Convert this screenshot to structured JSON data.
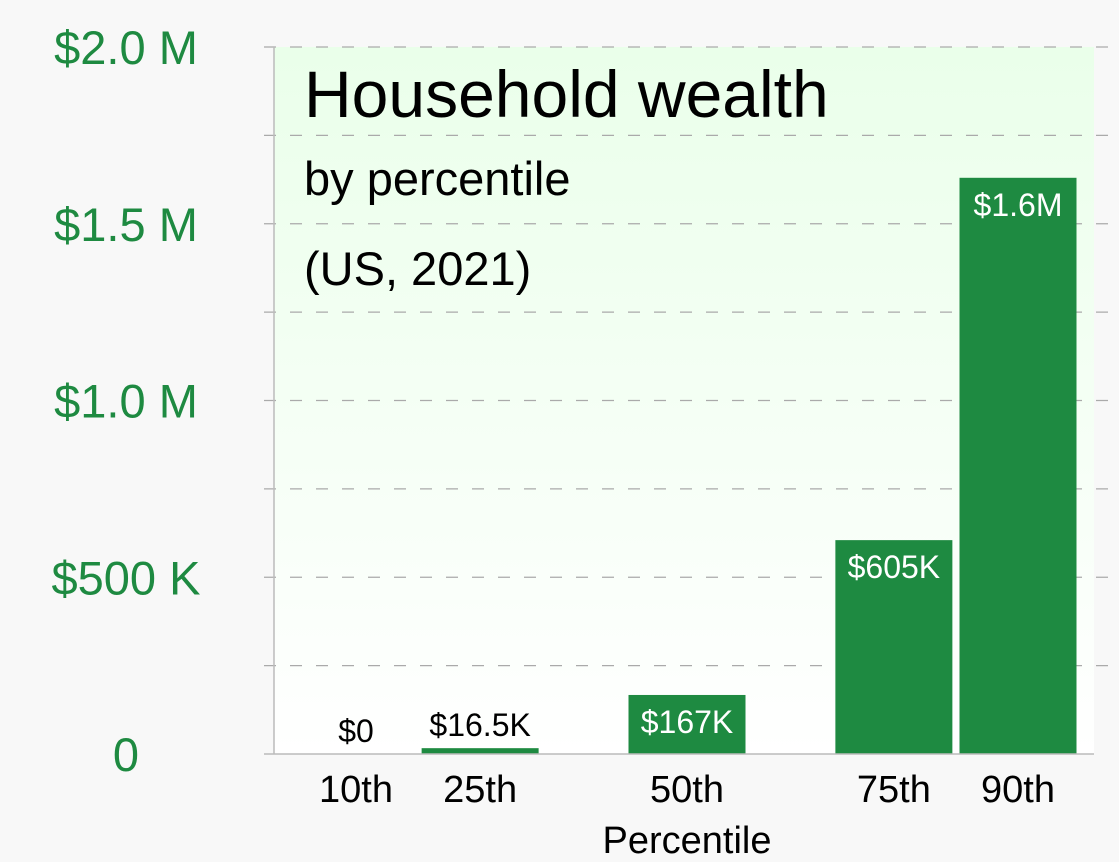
{
  "chart_data": {
    "type": "bar",
    "title": "Household wealth",
    "subtitle_lines": [
      "by percentile",
      "(US, 2021)"
    ],
    "xlabel": "Percentile",
    "ylabel": "",
    "x": [
      10,
      25,
      50,
      75,
      90
    ],
    "categories": [
      "10th",
      "25th",
      "50th",
      "75th",
      "90th"
    ],
    "values": [
      0,
      16500,
      167000,
      605000,
      1630000
    ],
    "data_labels": [
      "$0",
      "$16.5K",
      "$167K",
      "$605K",
      "$1.6M"
    ],
    "ylim": [
      0,
      2000000
    ],
    "yticks": [
      {
        "value": 0,
        "label": "0"
      },
      {
        "value": 500000,
        "label": "$500 K"
      },
      {
        "value": 1000000,
        "label": "$1.0 M"
      },
      {
        "value": 1500000,
        "label": "$1.5 M"
      },
      {
        "value": 2000000,
        "label": "$2.0 M"
      }
    ],
    "minor_grid_step": 250000,
    "grid": true,
    "colors": {
      "bar": "#1e8a41",
      "axis_text": "#1e8a41",
      "plot_bg_top": "#eaffea",
      "plot_bg_bottom": "#ffffff",
      "grid": "#aaaaaa"
    }
  }
}
